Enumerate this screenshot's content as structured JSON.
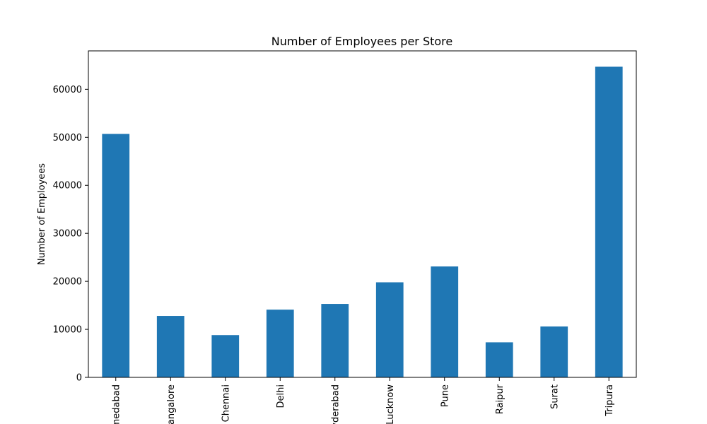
{
  "chart_data": {
    "type": "bar",
    "title": "Number of Employees per Store",
    "xlabel": "",
    "ylabel": "Number of Employees",
    "categories": [
      "Ahmedabad",
      "Bangalore",
      "Chennai",
      "Delhi",
      "Hyderabad",
      "Lucknow",
      "Pune",
      "Raipur",
      "Surat",
      "Tripura"
    ],
    "values": [
      50700,
      12800,
      8800,
      14100,
      15300,
      19800,
      23100,
      7300,
      10600,
      64700
    ],
    "ylim": [
      0,
      68000
    ],
    "yticks": [
      0,
      10000,
      20000,
      30000,
      40000,
      50000,
      60000
    ],
    "bar_color": "#1f77b4",
    "grid": false,
    "legend": "none"
  }
}
